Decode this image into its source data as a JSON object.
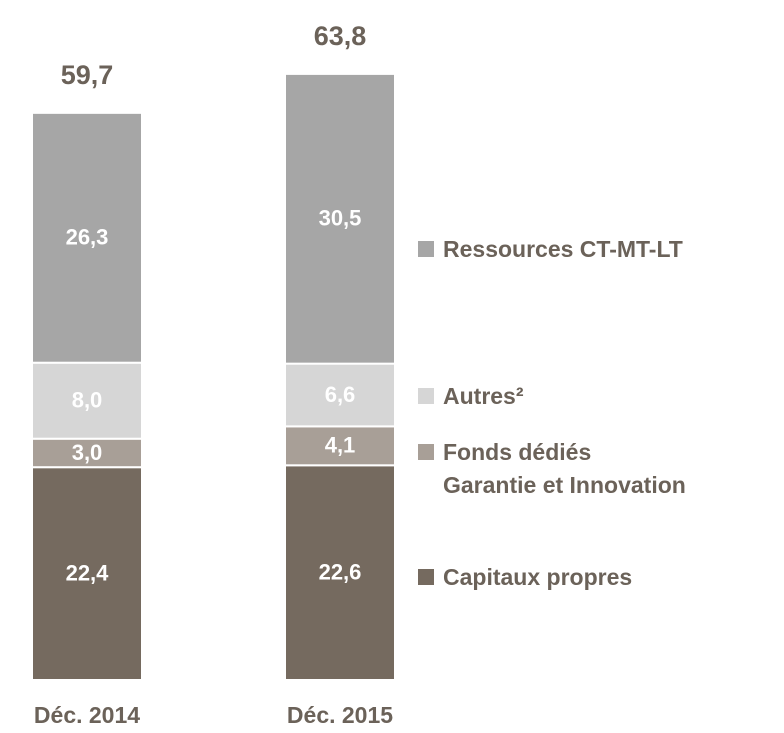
{
  "chart_data": {
    "type": "stacked-bar",
    "categories": [
      "Déc. 2014",
      "Déc. 2015"
    ],
    "totals": [
      59.7,
      63.8
    ],
    "total_labels": [
      "59,7",
      "63,8"
    ],
    "series": [
      {
        "name": "Capitaux propres",
        "color": "#756a5f",
        "values": [
          22.4,
          22.6
        ],
        "value_labels": [
          "22,4",
          "22,6"
        ]
      },
      {
        "name": "Fonds dédiés\nGarantie et Innovation",
        "color": "#a89f97",
        "values": [
          3.0,
          4.1
        ],
        "value_labels": [
          "3,0",
          "4,1"
        ]
      },
      {
        "name": "Autres²",
        "color": "#d6d6d6",
        "values": [
          8.0,
          6.6
        ],
        "value_labels": [
          "8,0",
          "6,6"
        ]
      },
      {
        "name": "Ressources CT-MT-LT",
        "color": "#a6a6a6",
        "values": [
          26.3,
          30.5
        ],
        "value_labels": [
          "26,3",
          "30,5"
        ]
      }
    ]
  }
}
